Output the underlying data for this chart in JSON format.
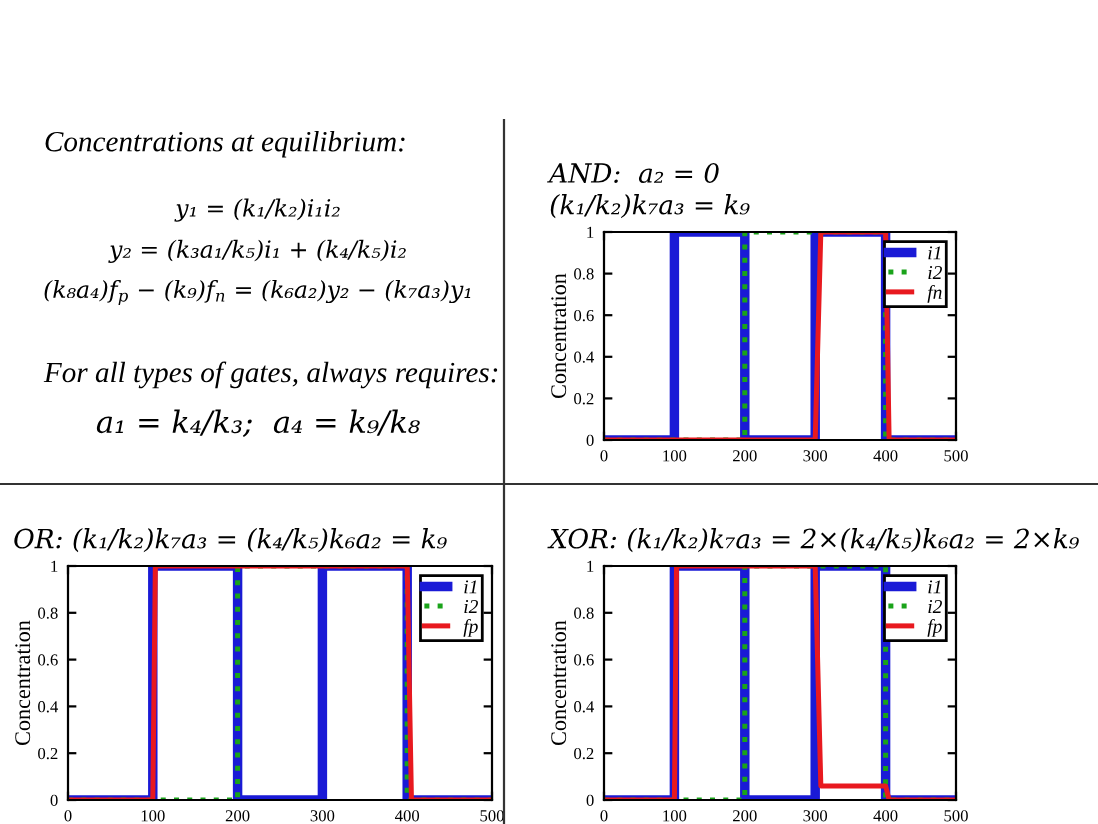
{
  "chart_data": [
    {
      "type": "other",
      "title": "Concentrations at equilibrium:",
      "annotations": [
        "y₁ = (k₁/k₂)i₁i₂",
        "y₂ = (k₃a₁/k₅)i₁ + (k₄/k₅)i₂",
        "(k₈a₄)f$_{p}$ − (k₉)f$_{n}$ = (k₆a₂)y₂ − (k₇a₃)y₁",
        "For all types of gates, always requires:",
        "a₁ = k₄/k₃;  a₄ = k₉/k₈"
      ]
    },
    {
      "type": "line",
      "title": "AND:  a₂ = 0\n(k₁/k₂)k₇a₃ = k₉",
      "ylabel": "Concentration",
      "xlim": [
        0,
        500
      ],
      "ylim": [
        0,
        1
      ],
      "xticks": [
        0,
        100,
        200,
        300,
        400,
        500
      ],
      "yticks": [
        0,
        0.2,
        0.4,
        0.6,
        0.8,
        1
      ],
      "legend": "top right",
      "grid": false,
      "series": [
        {
          "name": "i1",
          "color": "#1a1ad6",
          "line_style": "solid",
          "x": [
            0,
            100,
            100,
            200,
            200,
            300,
            300,
            400,
            400,
            500
          ],
          "values": [
            0,
            0,
            1,
            1,
            0,
            0,
            1,
            1,
            0,
            0
          ]
        },
        {
          "name": "i2",
          "color": "#1aa31a",
          "line_style": "dotted",
          "x": [
            0,
            200,
            200,
            400,
            400,
            500
          ],
          "values": [
            0,
            0,
            1,
            1,
            0,
            0
          ]
        },
        {
          "name": "fn",
          "color": "#e8191f",
          "line_style": "solid",
          "x": [
            0,
            300,
            308,
            400,
            405,
            500
          ],
          "values": [
            0,
            0,
            1,
            1,
            0,
            0
          ]
        }
      ]
    },
    {
      "type": "line",
      "title": "OR: (k₁/k₂)k₇a₃ = (k₄/k₅)k₆a₂ = k₉",
      "ylabel": "Concentration",
      "xlim": [
        0,
        500
      ],
      "ylim": [
        0,
        1
      ],
      "xticks": [
        0,
        100,
        200,
        300,
        400,
        500
      ],
      "yticks": [
        0,
        0.2,
        0.4,
        0.6,
        0.8,
        1
      ],
      "legend": "top right",
      "grid": false,
      "series": [
        {
          "name": "i1",
          "color": "#1a1ad6",
          "line_style": "solid",
          "x": [
            0,
            100,
            100,
            200,
            200,
            300,
            300,
            400,
            400,
            500
          ],
          "values": [
            0,
            0,
            1,
            1,
            0,
            0,
            1,
            1,
            0,
            0
          ]
        },
        {
          "name": "i2",
          "color": "#1aa31a",
          "line_style": "dotted",
          "x": [
            0,
            200,
            200,
            400,
            400,
            500
          ],
          "values": [
            0,
            0,
            1,
            1,
            0,
            0
          ]
        },
        {
          "name": "fp",
          "color": "#e8191f",
          "line_style": "solid",
          "x": [
            0,
            100,
            103,
            400,
            405,
            500
          ],
          "values": [
            0,
            0,
            1,
            1,
            0,
            0
          ]
        }
      ]
    },
    {
      "type": "line",
      "title": "XOR: (k₁/k₂)k₇a₃ = 2×(k₄/k₅)k₆a₂ = 2×k₉",
      "ylabel": "Concentration",
      "xlim": [
        0,
        500
      ],
      "ylim": [
        0,
        1
      ],
      "xticks": [
        0,
        100,
        200,
        300,
        400,
        500
      ],
      "yticks": [
        0,
        0.2,
        0.4,
        0.6,
        0.8,
        1
      ],
      "legend": "top right",
      "grid": false,
      "series": [
        {
          "name": "i1",
          "color": "#1a1ad6",
          "line_style": "solid",
          "x": [
            0,
            100,
            100,
            200,
            200,
            300,
            300,
            400,
            400,
            500
          ],
          "values": [
            0,
            0,
            1,
            1,
            0,
            0,
            1,
            1,
            0,
            0
          ]
        },
        {
          "name": "i2",
          "color": "#1aa31a",
          "line_style": "dotted",
          "x": [
            0,
            200,
            200,
            400,
            400,
            500
          ],
          "values": [
            0,
            0,
            1,
            1,
            0,
            0
          ]
        },
        {
          "name": "fp",
          "color": "#e8191f",
          "line_style": "solid",
          "x": [
            0,
            100,
            103,
            300,
            308,
            400,
            405,
            500
          ],
          "values": [
            0,
            0,
            1,
            1,
            0.06,
            0.06,
            0,
            0
          ]
        }
      ]
    }
  ]
}
